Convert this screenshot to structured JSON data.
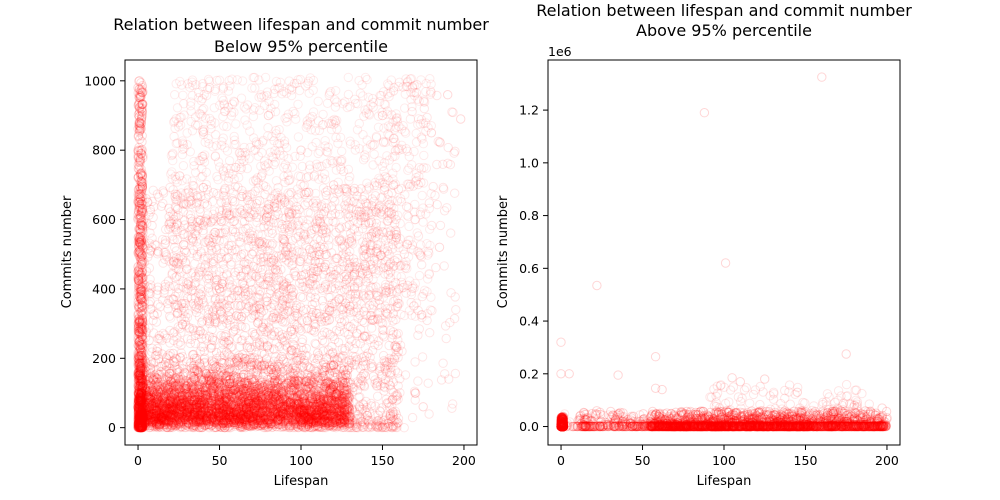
{
  "chart_data": [
    {
      "type": "scatter",
      "title": "Relation between lifespan and commit number\nBelow 95% percentile",
      "xlabel": "Lifespan",
      "ylabel": "Commits number",
      "xlim": [
        -8,
        208
      ],
      "ylim": [
        -50,
        1060
      ],
      "xticks": [
        0,
        50,
        100,
        150,
        200
      ],
      "yticks": [
        0,
        200,
        400,
        600,
        800,
        1000
      ],
      "ytick_labels": [
        "0",
        "200",
        "400",
        "600",
        "800",
        "1000"
      ],
      "marker": "hollow-circle",
      "color": "#ff0000",
      "alpha": 0.1,
      "grid": false,
      "legend": "none",
      "density": {
        "note_points": [
          [
            0,
            20
          ],
          [
            0,
            60
          ],
          [
            0,
            120
          ],
          [
            0,
            200
          ],
          [
            0,
            300
          ],
          [
            0,
            450
          ],
          [
            0,
            600
          ],
          [
            0,
            800
          ],
          [
            0,
            980
          ],
          [
            5,
            30
          ],
          [
            10,
            80
          ],
          [
            20,
            50
          ],
          [
            30,
            120
          ],
          [
            40,
            80
          ],
          [
            50,
            150
          ],
          [
            60,
            60
          ],
          [
            70,
            200
          ],
          [
            80,
            100
          ],
          [
            90,
            250
          ],
          [
            100,
            150
          ],
          [
            110,
            60
          ],
          [
            120,
            40
          ],
          [
            130,
            30
          ],
          [
            50,
            400
          ],
          [
            60,
            750
          ],
          [
            70,
            500
          ],
          [
            80,
            900
          ],
          [
            90,
            650
          ],
          [
            100,
            800
          ],
          [
            110,
            450
          ],
          [
            120,
            700
          ],
          [
            130,
            350
          ],
          [
            140,
            500
          ],
          [
            150,
            900
          ],
          [
            160,
            400
          ],
          [
            170,
            600
          ],
          [
            180,
            850
          ],
          [
            185,
            520
          ],
          [
            190,
            960
          ],
          [
            198,
            890
          ],
          [
            170,
            100
          ],
          [
            175,
            60
          ]
        ]
      }
    },
    {
      "type": "scatter",
      "title": "Above 95% percentile",
      "xlabel": "Lifespan",
      "ylabel": "Commits number",
      "xlim": [
        -8,
        208
      ],
      "ylim": [
        -70000,
        1390000
      ],
      "xticks": [
        0,
        50,
        100,
        150,
        200
      ],
      "yticks": [
        0,
        200000,
        400000,
        600000,
        800000,
        1000000,
        1200000
      ],
      "ytick_labels": [
        "0.0",
        "0.2",
        "0.4",
        "0.6",
        "0.8",
        "1.0",
        "1.2"
      ],
      "offset_text": "1e6",
      "marker": "hollow-circle",
      "color": "#ff0000",
      "alpha": 0.1,
      "grid": false,
      "legend": "none",
      "outliers": [
        [
          0,
          320000
        ],
        [
          0,
          200000
        ],
        [
          5,
          200000
        ],
        [
          22,
          535000
        ],
        [
          35,
          195000
        ],
        [
          58,
          265000
        ],
        [
          58,
          145000
        ],
        [
          62,
          140000
        ],
        [
          88,
          1190000
        ],
        [
          101,
          620000
        ],
        [
          105,
          185000
        ],
        [
          110,
          170000
        ],
        [
          125,
          180000
        ],
        [
          145,
          130000
        ],
        [
          160,
          1325000
        ],
        [
          175,
          275000
        ],
        [
          180,
          80000
        ],
        [
          197,
          70000
        ]
      ]
    }
  ],
  "figure_title_line1": "Relation between lifespan and commit number"
}
